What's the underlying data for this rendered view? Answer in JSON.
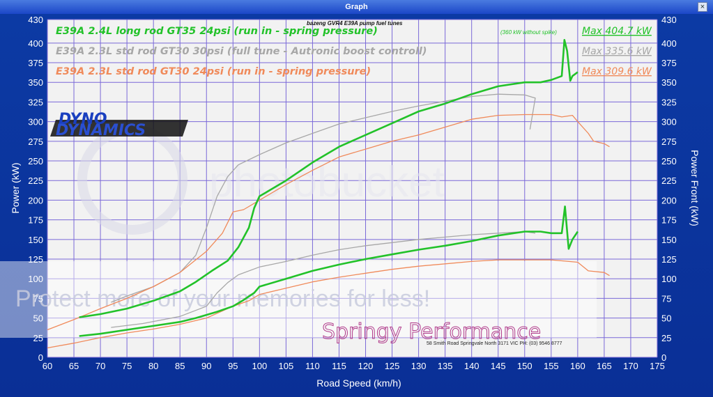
{
  "window": {
    "title": "Graph",
    "close_label": "×"
  },
  "header_note": "bazeng GVR4 E39A pump fuel tunes",
  "spike_note": "(360 kW without spike)",
  "watermark": {
    "main": "photobucket",
    "banner": "Protect more of your memories for less!"
  },
  "logo": {
    "line1": "DYNO",
    "line2": "DYNAMICS"
  },
  "shop": {
    "name": "Springy Performance",
    "address": "58 Smith Road Springvale North 3171 VIC    PH: (03) 9546 8777"
  },
  "chart_data": {
    "type": "line",
    "xlabel": "Road Speed (km/h)",
    "ylabel": "Power (kW)",
    "y2label": "Power Front (kW)",
    "xlim": [
      60,
      175
    ],
    "ylim": [
      0,
      430
    ],
    "xticks": [
      "60",
      "65",
      "70",
      "75",
      "80",
      "85",
      "90",
      "95",
      "100",
      "105",
      "110",
      "115",
      "120",
      "125",
      "130",
      "135",
      "140",
      "145",
      "150",
      "155",
      "160",
      "165",
      "170",
      "175"
    ],
    "yticks": [
      "0",
      "25",
      "50",
      "75",
      "100",
      "125",
      "150",
      "175",
      "200",
      "225",
      "250",
      "275",
      "300",
      "325",
      "350",
      "375",
      "400",
      "430"
    ],
    "grid": true,
    "colors": {
      "green": "#22c229",
      "gray": "#a7a7a7",
      "orange": "#f08a5a",
      "plot_bg": "#f2f2f2",
      "grid": "#7a68d8"
    },
    "series": [
      {
        "name": "E39A 2.4L long rod GT35 24psi (run in  - spring pressure)",
        "max_label": "Max 404.7 kW",
        "color": "#22c229",
        "power": [
          [
            66,
            51
          ],
          [
            70,
            55
          ],
          [
            75,
            62
          ],
          [
            80,
            72
          ],
          [
            85,
            84
          ],
          [
            88,
            96
          ],
          [
            91,
            110
          ],
          [
            94,
            123
          ],
          [
            96,
            140
          ],
          [
            98,
            165
          ],
          [
            99,
            190
          ],
          [
            100,
            205
          ],
          [
            102,
            213
          ],
          [
            105,
            225
          ],
          [
            110,
            248
          ],
          [
            115,
            268
          ],
          [
            120,
            283
          ],
          [
            125,
            298
          ],
          [
            130,
            313
          ],
          [
            135,
            323
          ],
          [
            140,
            335
          ],
          [
            145,
            345
          ],
          [
            150,
            350
          ],
          [
            153,
            350
          ],
          [
            155,
            353
          ],
          [
            157,
            358
          ],
          [
            157.5,
            404
          ],
          [
            158,
            390
          ],
          [
            158.6,
            352
          ],
          [
            159,
            358
          ],
          [
            160,
            363
          ]
        ],
        "front": [
          [
            66,
            27
          ],
          [
            70,
            30
          ],
          [
            75,
            35
          ],
          [
            80,
            40
          ],
          [
            85,
            45
          ],
          [
            88,
            50
          ],
          [
            92,
            58
          ],
          [
            95,
            65
          ],
          [
            97,
            73
          ],
          [
            99,
            82
          ],
          [
            100,
            90
          ],
          [
            105,
            100
          ],
          [
            110,
            110
          ],
          [
            115,
            118
          ],
          [
            120,
            125
          ],
          [
            125,
            131
          ],
          [
            130,
            137
          ],
          [
            135,
            142
          ],
          [
            140,
            148
          ],
          [
            145,
            155
          ],
          [
            150,
            160
          ],
          [
            153,
            160
          ],
          [
            155,
            158
          ],
          [
            157,
            158
          ],
          [
            157.6,
            192
          ],
          [
            158.3,
            138
          ],
          [
            159,
            150
          ],
          [
            160,
            160
          ]
        ]
      },
      {
        "name": "E39A 2.3L std rod GT30 30psi (full tune - Autronic boost controll)",
        "max_label": "Max 335.6 kW",
        "color": "#a7a7a7",
        "power": [
          [
            72,
            70
          ],
          [
            75,
            78
          ],
          [
            80,
            90
          ],
          [
            85,
            108
          ],
          [
            88,
            130
          ],
          [
            90,
            165
          ],
          [
            92,
            205
          ],
          [
            94,
            230
          ],
          [
            96,
            245
          ],
          [
            100,
            258
          ],
          [
            105,
            273
          ],
          [
            110,
            285
          ],
          [
            115,
            297
          ],
          [
            120,
            305
          ],
          [
            125,
            313
          ],
          [
            130,
            320
          ],
          [
            135,
            326
          ],
          [
            140,
            332
          ],
          [
            145,
            335
          ],
          [
            150,
            334
          ],
          [
            152,
            330
          ],
          [
            151,
            290
          ]
        ],
        "front": [
          [
            72,
            38
          ],
          [
            78,
            43
          ],
          [
            85,
            52
          ],
          [
            90,
            65
          ],
          [
            92,
            82
          ],
          [
            94,
            95
          ],
          [
            96,
            105
          ],
          [
            100,
            115
          ],
          [
            105,
            122
          ],
          [
            110,
            130
          ],
          [
            115,
            137
          ],
          [
            120,
            142
          ],
          [
            125,
            146
          ],
          [
            130,
            150
          ],
          [
            135,
            153
          ],
          [
            140,
            156
          ],
          [
            145,
            158
          ],
          [
            150,
            160
          ],
          [
            152,
            158
          ]
        ]
      },
      {
        "name": "E39A 2.3L std rod GT30 24psi (run in  - spring pressure)",
        "max_label": "Max 309.6 kW",
        "color": "#f08a5a",
        "power": [
          [
            60,
            35
          ],
          [
            65,
            48
          ],
          [
            70,
            62
          ],
          [
            75,
            75
          ],
          [
            80,
            90
          ],
          [
            85,
            108
          ],
          [
            90,
            135
          ],
          [
            93,
            158
          ],
          [
            95,
            185
          ],
          [
            97,
            188
          ],
          [
            100,
            200
          ],
          [
            105,
            220
          ],
          [
            110,
            238
          ],
          [
            115,
            255
          ],
          [
            120,
            265
          ],
          [
            125,
            275
          ],
          [
            130,
            283
          ],
          [
            135,
            293
          ],
          [
            140,
            303
          ],
          [
            145,
            308
          ],
          [
            150,
            309
          ],
          [
            155,
            309
          ],
          [
            157,
            306
          ],
          [
            159,
            308
          ],
          [
            160,
            300
          ],
          [
            162,
            285
          ],
          [
            163,
            275
          ],
          [
            165,
            272
          ],
          [
            166,
            268
          ]
        ],
        "front": [
          [
            60,
            12
          ],
          [
            65,
            18
          ],
          [
            70,
            25
          ],
          [
            75,
            31
          ],
          [
            80,
            36
          ],
          [
            85,
            42
          ],
          [
            90,
            50
          ],
          [
            95,
            65
          ],
          [
            98,
            72
          ],
          [
            100,
            80
          ],
          [
            105,
            88
          ],
          [
            110,
            96
          ],
          [
            115,
            102
          ],
          [
            120,
            107
          ],
          [
            125,
            112
          ],
          [
            130,
            116
          ],
          [
            135,
            119
          ],
          [
            140,
            122
          ],
          [
            145,
            124
          ],
          [
            150,
            124
          ],
          [
            155,
            124
          ],
          [
            160,
            121
          ],
          [
            162,
            110
          ],
          [
            165,
            108
          ],
          [
            166,
            104
          ]
        ]
      }
    ]
  }
}
